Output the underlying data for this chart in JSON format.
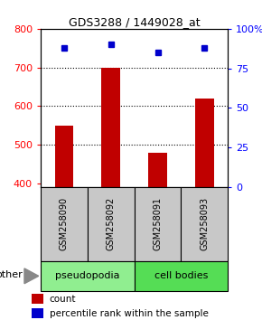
{
  "title": "GDS3288 / 1449028_at",
  "samples": [
    "GSM258090",
    "GSM258092",
    "GSM258091",
    "GSM258093"
  ],
  "bar_values": [
    550,
    700,
    478,
    620
  ],
  "percentile_values": [
    88,
    90,
    85,
    88
  ],
  "bar_color": "#C00000",
  "dot_color": "#0000CC",
  "ylim_left": [
    390,
    800
  ],
  "ylim_right": [
    0,
    100
  ],
  "yticks_left": [
    400,
    500,
    600,
    700,
    800
  ],
  "yticks_right": [
    0,
    25,
    50,
    75,
    100
  ],
  "ytick_labels_right": [
    "0",
    "25",
    "50",
    "75",
    "100%"
  ],
  "grid_values": [
    500,
    600,
    700
  ],
  "groups": [
    {
      "label": "pseudopodia",
      "indices": [
        0,
        1
      ],
      "color": "#90EE90"
    },
    {
      "label": "cell bodies",
      "indices": [
        2,
        3
      ],
      "color": "#55DD55"
    }
  ],
  "other_label": "other",
  "legend_count_label": "count",
  "legend_pct_label": "percentile rank within the sample",
  "bg_color": "#FFFFFF",
  "label_area_color": "#C8C8C8",
  "bar_width": 0.4
}
